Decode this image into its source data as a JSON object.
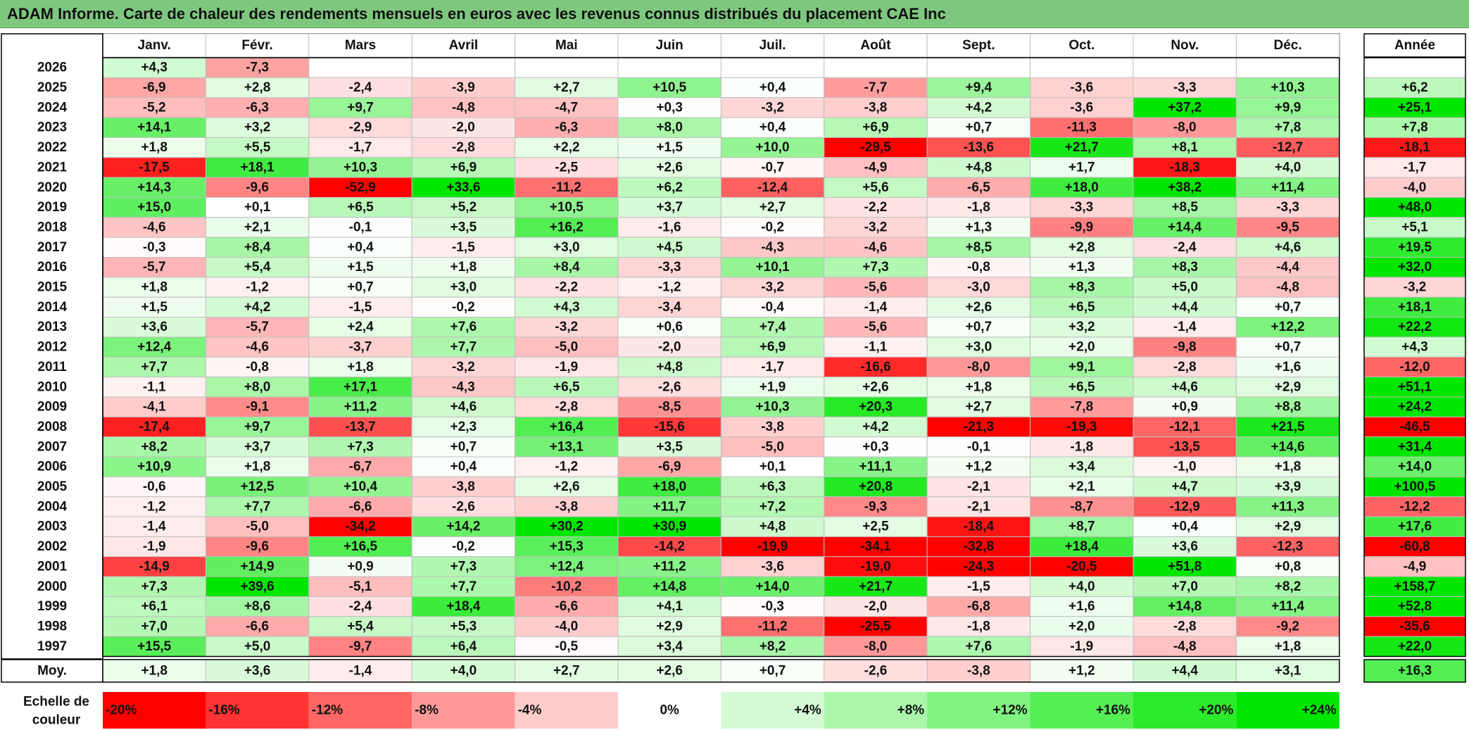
{
  "title": "ADAM Informe. Carte de chaleur des rendements mensuels en euros avec les revenus connus distribués du placement CAE Inc",
  "chart_data": {
    "type": "heatmap",
    "title": "ADAM Informe. Carte de chaleur des rendements mensuels en euros avec les revenus connus distribués du placement CAE Inc",
    "months": [
      "Janv.",
      "Févr.",
      "Mars",
      "Avril",
      "Mai",
      "Juin",
      "Juil.",
      "Août",
      "Sept.",
      "Oct.",
      "Nov.",
      "Déc."
    ],
    "year_header": "Année",
    "avg_label": "Moy.",
    "rows": [
      {
        "year": "2026",
        "values": [
          "+4,3",
          "-7,3",
          "",
          "",
          "",
          "",
          "",
          "",
          "",
          "",
          "",
          ""
        ],
        "annual": ""
      },
      {
        "year": "2025",
        "values": [
          "-6,9",
          "+2,8",
          "-2,4",
          "-3,9",
          "+2,7",
          "+10,5",
          "+0,4",
          "-7,7",
          "+9,4",
          "-3,6",
          "-3,3",
          "+10,3"
        ],
        "annual": "+6,2"
      },
      {
        "year": "2024",
        "values": [
          "-5,2",
          "-6,3",
          "+9,7",
          "-4,8",
          "-4,7",
          "+0,3",
          "-3,2",
          "-3,8",
          "+4,2",
          "-3,6",
          "+37,2",
          "+9,9"
        ],
        "annual": "+25,1"
      },
      {
        "year": "2023",
        "values": [
          "+14,1",
          "+3,2",
          "-2,9",
          "-2,0",
          "-6,3",
          "+8,0",
          "+0,4",
          "+6,9",
          "+0,7",
          "-11,3",
          "-8,0",
          "+7,8"
        ],
        "annual": "+7,8"
      },
      {
        "year": "2022",
        "values": [
          "+1,8",
          "+5,5",
          "-1,7",
          "-2,8",
          "+2,2",
          "+1,5",
          "+10,0",
          "-29,5",
          "-13,6",
          "+21,7",
          "+8,1",
          "-12,7"
        ],
        "annual": "-18,1"
      },
      {
        "year": "2021",
        "values": [
          "-17,5",
          "+18,1",
          "+10,3",
          "+6,9",
          "-2,5",
          "+2,6",
          "-0,7",
          "-4,9",
          "+4,8",
          "+1,7",
          "-18,3",
          "+4,0"
        ],
        "annual": "-1,7"
      },
      {
        "year": "2020",
        "values": [
          "+14,3",
          "-9,6",
          "-52,9",
          "+33,6",
          "-11,2",
          "+6,2",
          "-12,4",
          "+5,6",
          "-6,5",
          "+18,0",
          "+38,2",
          "+11,4"
        ],
        "annual": "-4,0"
      },
      {
        "year": "2019",
        "values": [
          "+15,0",
          "+0,1",
          "+6,5",
          "+5,2",
          "+10,5",
          "+3,7",
          "+2,7",
          "-2,2",
          "-1,8",
          "-3,3",
          "+8,5",
          "-3,3"
        ],
        "annual": "+48,0"
      },
      {
        "year": "2018",
        "values": [
          "-4,6",
          "+2,1",
          "-0,1",
          "+3,5",
          "+16,2",
          "-1,6",
          "-0,2",
          "-3,2",
          "+1,3",
          "-9,9",
          "+14,4",
          "-9,5"
        ],
        "annual": "+5,1"
      },
      {
        "year": "2017",
        "values": [
          "-0,3",
          "+8,4",
          "+0,4",
          "-1,5",
          "+3,0",
          "+4,5",
          "-4,3",
          "-4,6",
          "+8,5",
          "+2,8",
          "-2,4",
          "+4,6"
        ],
        "annual": "+19,5"
      },
      {
        "year": "2016",
        "values": [
          "-5,7",
          "+5,4",
          "+1,5",
          "+1,8",
          "+8,4",
          "-3,3",
          "+10,1",
          "+7,3",
          "-0,8",
          "+1,3",
          "+8,3",
          "-4,4"
        ],
        "annual": "+32,0"
      },
      {
        "year": "2015",
        "values": [
          "+1,8",
          "-1,2",
          "+0,7",
          "+3,0",
          "-2,2",
          "-1,2",
          "-3,2",
          "-5,6",
          "-3,0",
          "+8,3",
          "+5,0",
          "-4,8"
        ],
        "annual": "-3,2"
      },
      {
        "year": "2014",
        "values": [
          "+1,5",
          "+4,2",
          "-1,5",
          "-0,2",
          "+4,3",
          "-3,4",
          "-0,4",
          "-1,4",
          "+2,6",
          "+6,5",
          "+4,4",
          "+0,7"
        ],
        "annual": "+18,1"
      },
      {
        "year": "2013",
        "values": [
          "+3,6",
          "-5,7",
          "+2,4",
          "+7,6",
          "-3,2",
          "+0,6",
          "+7,4",
          "-5,6",
          "+0,7",
          "+3,2",
          "-1,4",
          "+12,2"
        ],
        "annual": "+22,2"
      },
      {
        "year": "2012",
        "values": [
          "+12,4",
          "-4,6",
          "-3,7",
          "+7,7",
          "-5,0",
          "-2,0",
          "+6,9",
          "-1,1",
          "+3,0",
          "+2,0",
          "-9,8",
          "+0,7"
        ],
        "annual": "+4,3"
      },
      {
        "year": "2011",
        "values": [
          "+7,7",
          "-0,8",
          "+1,8",
          "-3,2",
          "-1,9",
          "+4,8",
          "-1,7",
          "-16,6",
          "-8,0",
          "+9,1",
          "-2,8",
          "+1,6"
        ],
        "annual": "-12,0"
      },
      {
        "year": "2010",
        "values": [
          "-1,1",
          "+8,0",
          "+17,1",
          "-4,3",
          "+6,5",
          "-2,6",
          "+1,9",
          "+2,6",
          "+1,8",
          "+6,5",
          "+4,6",
          "+2,9"
        ],
        "annual": "+51,1"
      },
      {
        "year": "2009",
        "values": [
          "-4,1",
          "-9,1",
          "+11,2",
          "+4,6",
          "-2,8",
          "-8,5",
          "+10,3",
          "+20,3",
          "+2,7",
          "-7,8",
          "+0,9",
          "+8,8"
        ],
        "annual": "+24,2"
      },
      {
        "year": "2008",
        "values": [
          "-17,4",
          "+9,7",
          "-13,7",
          "+2,3",
          "+16,4",
          "-15,6",
          "-3,8",
          "+4,2",
          "-21,3",
          "-19,3",
          "-12,1",
          "+21,5"
        ],
        "annual": "-46,5"
      },
      {
        "year": "2007",
        "values": [
          "+8,2",
          "+3,7",
          "+7,3",
          "+0,7",
          "+13,1",
          "+3,5",
          "-5,0",
          "+0,3",
          "-0,1",
          "-1,8",
          "-13,5",
          "+14,6"
        ],
        "annual": "+31,4"
      },
      {
        "year": "2006",
        "values": [
          "+10,9",
          "+1,8",
          "-6,7",
          "+0,4",
          "-1,2",
          "-6,9",
          "+0,1",
          "+11,1",
          "+1,2",
          "+3,4",
          "-1,0",
          "+1,8"
        ],
        "annual": "+14,0"
      },
      {
        "year": "2005",
        "values": [
          "-0,6",
          "+12,5",
          "+10,4",
          "-3,8",
          "+2,6",
          "+18,0",
          "+6,3",
          "+20,8",
          "-2,1",
          "+2,1",
          "+4,7",
          "+3,9"
        ],
        "annual": "+100,5"
      },
      {
        "year": "2004",
        "values": [
          "-1,2",
          "+7,7",
          "-6,6",
          "-2,6",
          "-3,8",
          "+11,7",
          "+7,2",
          "-9,3",
          "-2,1",
          "-8,7",
          "-12,9",
          "+11,3"
        ],
        "annual": "-12,2"
      },
      {
        "year": "2003",
        "values": [
          "-1,4",
          "-5,0",
          "-34,2",
          "+14,2",
          "+30,2",
          "+30,9",
          "+4,8",
          "+2,5",
          "-18,4",
          "+8,7",
          "+0,4",
          "+2,9"
        ],
        "annual": "+17,6"
      },
      {
        "year": "2002",
        "values": [
          "-1,9",
          "-9,6",
          "+16,5",
          "-0,2",
          "+15,3",
          "-14,2",
          "-19,9",
          "-34,1",
          "-32,8",
          "+18,4",
          "+3,6",
          "-12,3"
        ],
        "annual": "-60,8"
      },
      {
        "year": "2001",
        "values": [
          "-14,9",
          "+14,9",
          "+0,9",
          "+7,3",
          "+12,4",
          "+11,2",
          "-3,6",
          "-19,0",
          "-24,3",
          "-20,5",
          "+51,8",
          "+0,8"
        ],
        "annual": "-4,9"
      },
      {
        "year": "2000",
        "values": [
          "+7,3",
          "+39,6",
          "-5,1",
          "+7,7",
          "-10,2",
          "+14,8",
          "+14,0",
          "+21,7",
          "-1,5",
          "+4,0",
          "+7,0",
          "+8,2"
        ],
        "annual": "+158,7"
      },
      {
        "year": "1999",
        "values": [
          "+6,1",
          "+8,6",
          "-2,4",
          "+18,4",
          "-6,6",
          "+4,1",
          "-0,3",
          "-2,0",
          "-6,8",
          "+1,6",
          "+14,8",
          "+11,4"
        ],
        "annual": "+52,8"
      },
      {
        "year": "1998",
        "values": [
          "+7,0",
          "-6,6",
          "+5,4",
          "+5,3",
          "-4,0",
          "+2,9",
          "-11,2",
          "-25,5",
          "-1,8",
          "+2,0",
          "-2,8",
          "-9,2"
        ],
        "annual": "-35,6"
      },
      {
        "year": "1997",
        "values": [
          "+15,5",
          "+5,0",
          "-9,7",
          "+6,4",
          "-0,5",
          "+3,4",
          "+8,2",
          "-8,0",
          "+7,6",
          "-1,9",
          "-4,8",
          "+1,8"
        ],
        "annual": "+22,0"
      }
    ],
    "averages": {
      "values": [
        "+1,8",
        "+3,6",
        "-1,4",
        "+4,0",
        "+2,7",
        "+2,6",
        "+0,7",
        "-2,6",
        "-3,8",
        "+1,2",
        "+4,4",
        "+3,1"
      ],
      "annual": "+16,3"
    },
    "scale": {
      "label_line1": "Echelle de",
      "label_line2": "couleur",
      "stops": [
        "-20%",
        "-16%",
        "-12%",
        "-8%",
        "-4%",
        "0%",
        "+4%",
        "+8%",
        "+12%",
        "+16%",
        "+20%",
        "+24%"
      ],
      "stop_values": [
        -20,
        -16,
        -12,
        -8,
        -4,
        0,
        4,
        8,
        12,
        16,
        20,
        24
      ]
    },
    "colors": {
      "negative_max": "#ff0000",
      "neutral": "#ffffff",
      "positive_max": "#00e600",
      "title_bar": "#7ec77e",
      "grid": "#bfbfbf"
    }
  }
}
